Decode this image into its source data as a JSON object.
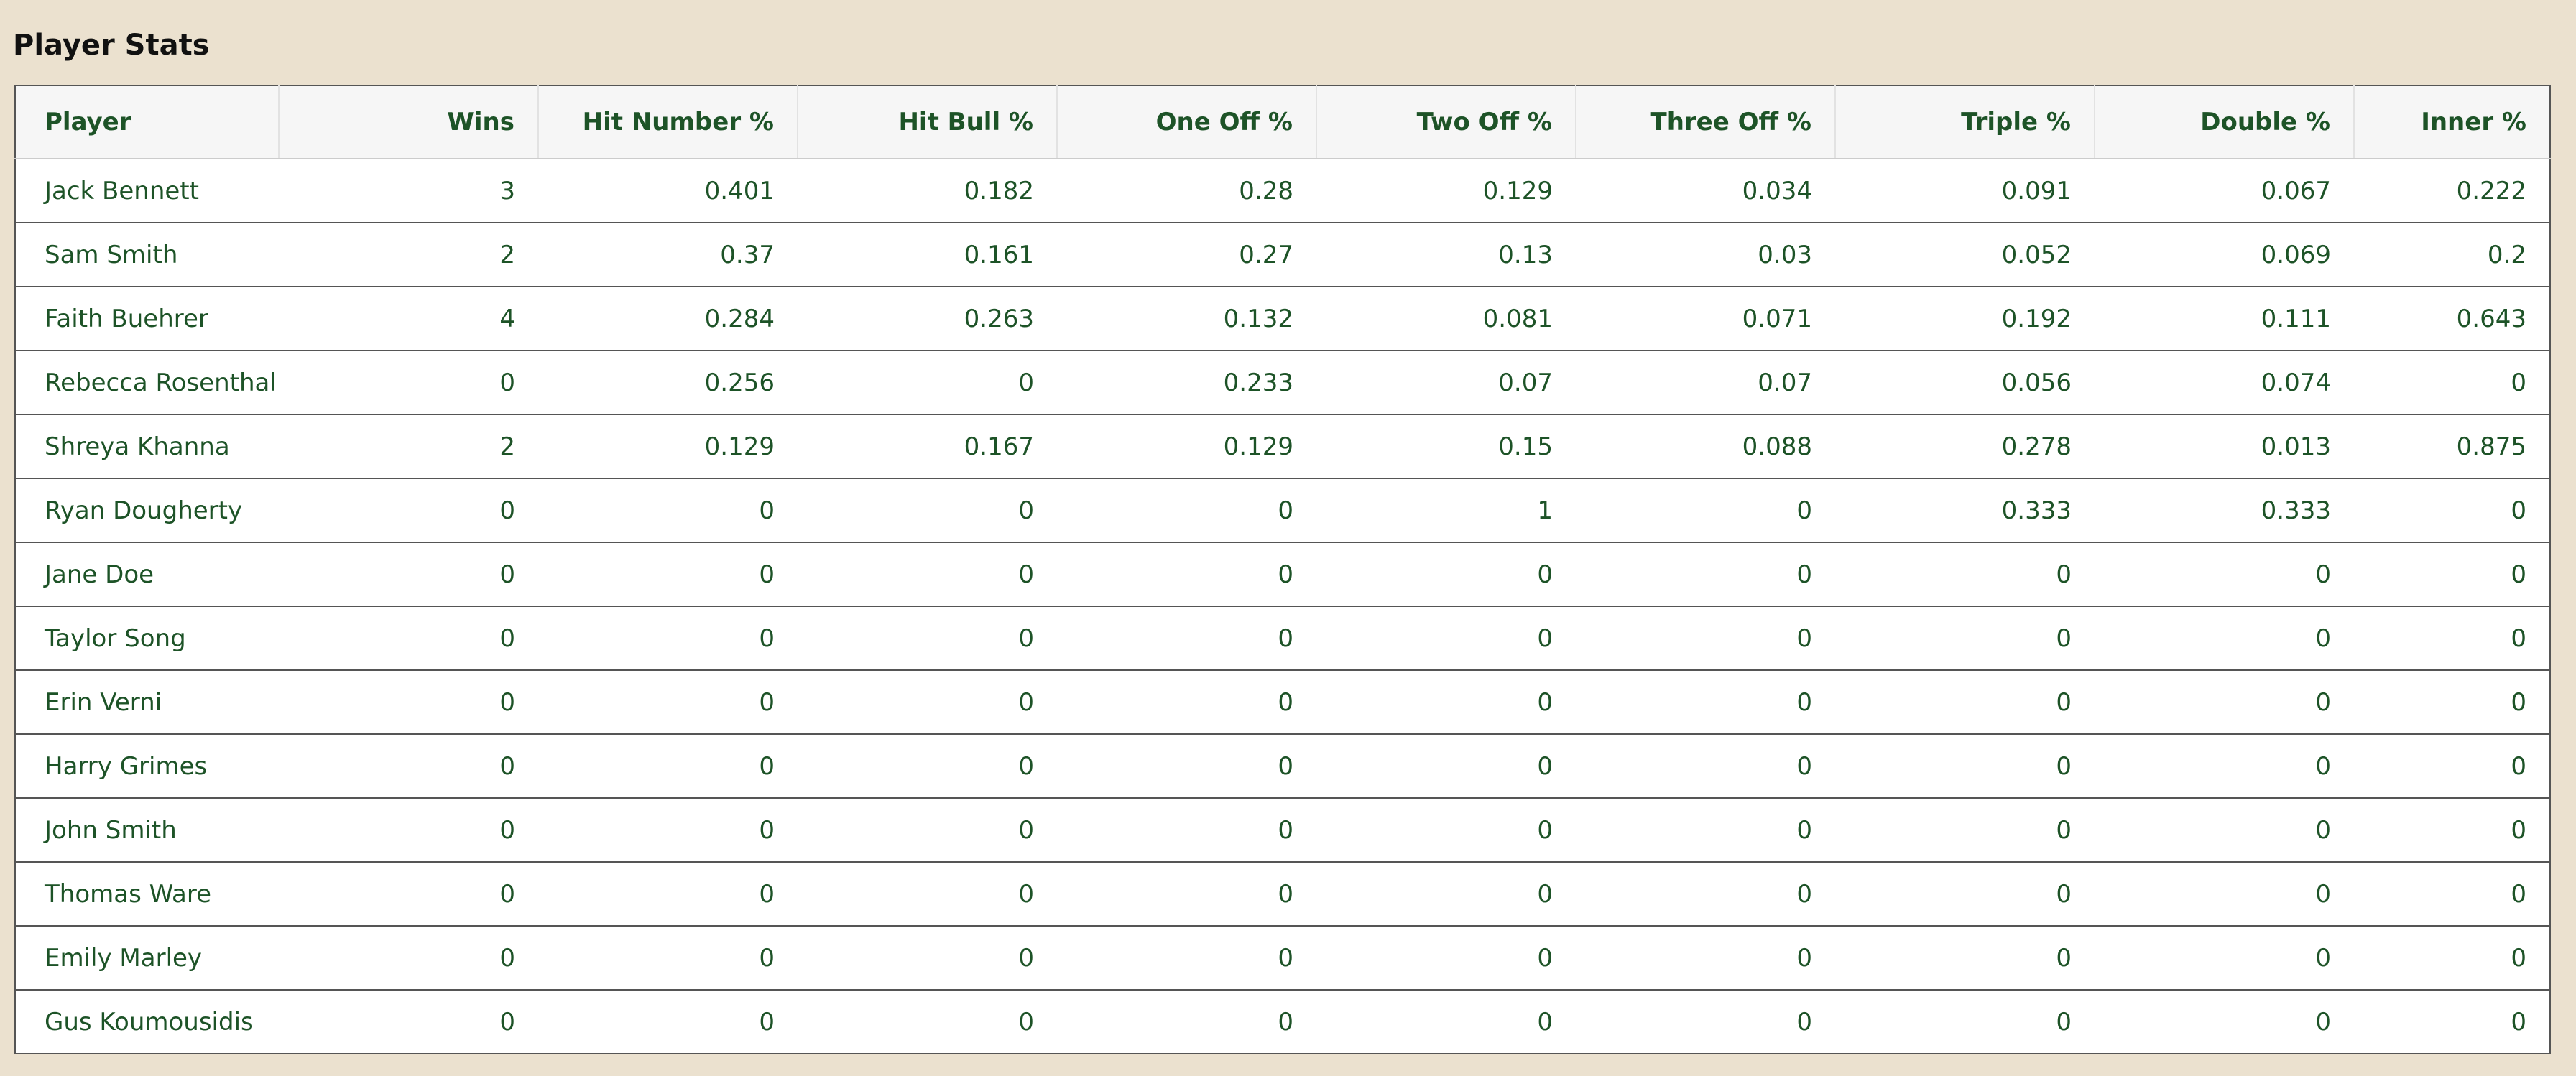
{
  "title": "Player Stats",
  "table": {
    "header": [
      "Player",
      "Wins",
      "Hit Number %",
      "Hit Bull %",
      "One Off %",
      "Two Off %",
      "Three Off %",
      "Triple %",
      "Double %",
      "Inner %"
    ],
    "rows": [
      [
        "Jack Bennett",
        3,
        0.401,
        0.182,
        0.28,
        0.129,
        0.034,
        0.091,
        0.067,
        0.222
      ],
      [
        "Sam Smith",
        2,
        0.37,
        0.161,
        0.27,
        0.13,
        0.03,
        0.052,
        0.069,
        0.2
      ],
      [
        "Faith Buehrer",
        4,
        0.284,
        0.263,
        0.132,
        0.081,
        0.071,
        0.192,
        0.111,
        0.643
      ],
      [
        "Rebecca Rosenthal",
        0,
        0.256,
        0,
        0.233,
        0.07,
        0.07,
        0.056,
        0.074,
        0
      ],
      [
        "Shreya Khanna",
        2,
        0.129,
        0.167,
        0.129,
        0.15,
        0.088,
        0.278,
        0.013,
        0.875
      ],
      [
        "Ryan Dougherty",
        0,
        0,
        0,
        0,
        1,
        0,
        0.333,
        0.333,
        0
      ],
      [
        "Jane Doe",
        0,
        0,
        0,
        0,
        0,
        0,
        0,
        0,
        0
      ],
      [
        "Taylor Song",
        0,
        0,
        0,
        0,
        0,
        0,
        0,
        0,
        0
      ],
      [
        "Erin Verni",
        0,
        0,
        0,
        0,
        0,
        0,
        0,
        0,
        0
      ],
      [
        "Harry Grimes",
        0,
        0,
        0,
        0,
        0,
        0,
        0,
        0,
        0
      ],
      [
        "John Smith",
        0,
        0,
        0,
        0,
        0,
        0,
        0,
        0,
        0
      ],
      [
        "Thomas Ware",
        0,
        0,
        0,
        0,
        0,
        0,
        0,
        0,
        0
      ],
      [
        "Emily Marley",
        0,
        0,
        0,
        0,
        0,
        0,
        0,
        0,
        0
      ],
      [
        "Gus Koumousidis",
        0,
        0,
        0,
        0,
        0,
        0,
        0,
        0,
        0
      ]
    ]
  }
}
